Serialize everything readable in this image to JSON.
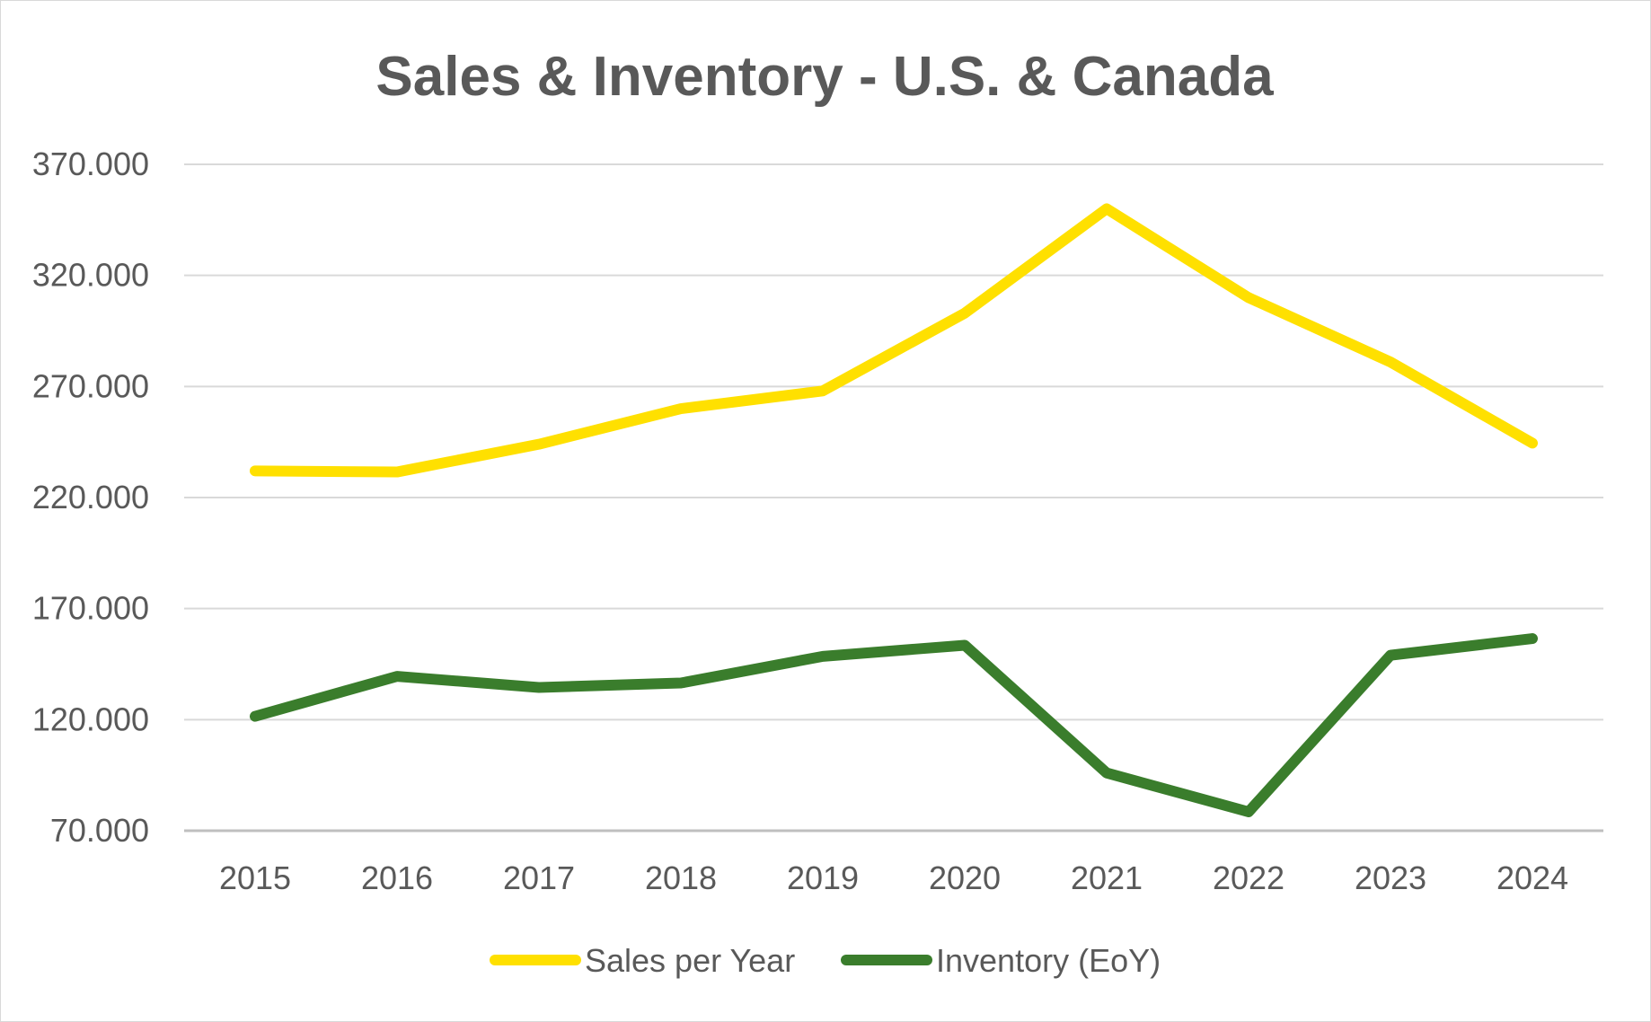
{
  "chart_data": {
    "type": "line",
    "title": "Sales & Inventory - U.S. & Canada",
    "xlabel": "",
    "ylabel": "",
    "x": [
      "2015",
      "2016",
      "2017",
      "2018",
      "2019",
      "2020",
      "2021",
      "2022",
      "2023",
      "2024"
    ],
    "y_ticks": [
      "370.000",
      "320.000",
      "270.000",
      "220.000",
      "170.000",
      "120.000",
      "70.000"
    ],
    "y_tick_values": [
      370000,
      320000,
      270000,
      220000,
      170000,
      120000,
      70000
    ],
    "ylim": [
      70000,
      370000
    ],
    "grid": true,
    "legend_position": "bottom",
    "series": [
      {
        "name": "Sales per Year",
        "color": "#FFE000",
        "values": [
          232000,
          231500,
          244000,
          260000,
          268000,
          303000,
          350000,
          310000,
          281000,
          244500
        ]
      },
      {
        "name": "Inventory (EoY)",
        "color": "#3A7D2C",
        "values": [
          121500,
          139500,
          134500,
          136500,
          148500,
          153500,
          96000,
          78500,
          149000,
          156500
        ]
      }
    ]
  }
}
